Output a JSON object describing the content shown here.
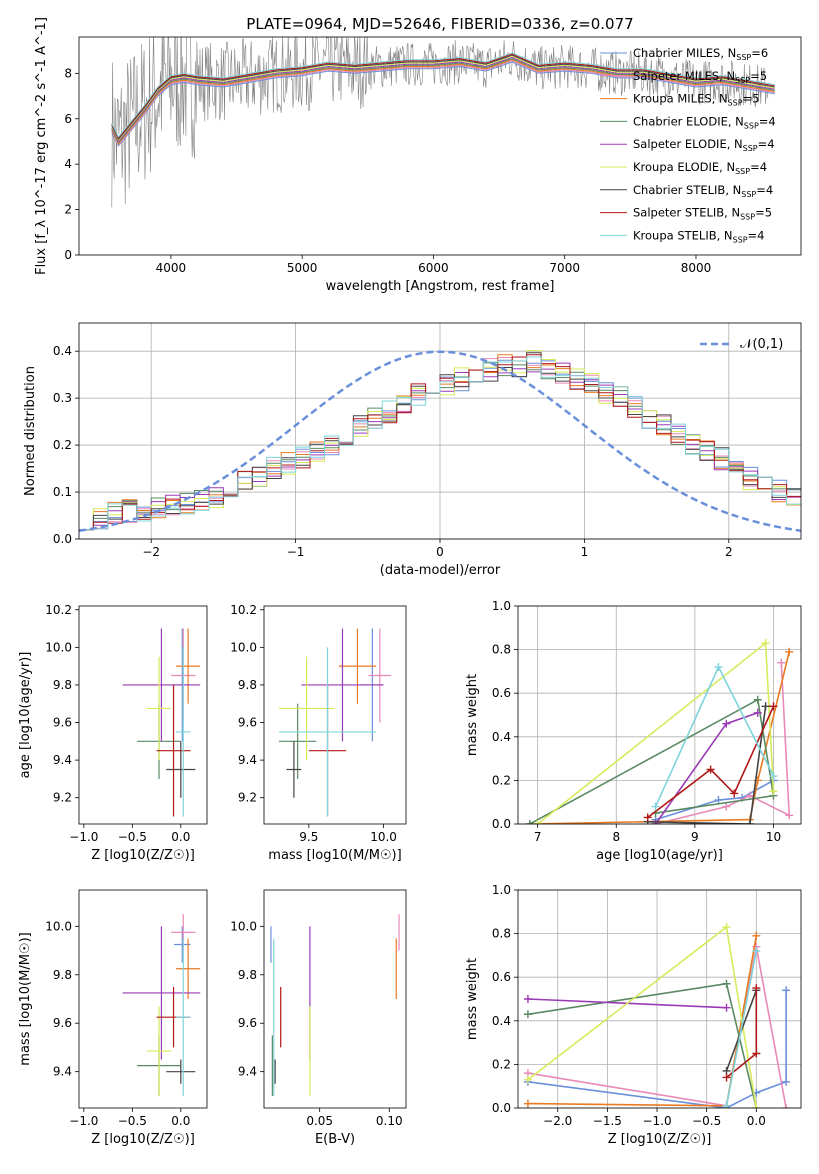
{
  "figure": {
    "title": "PLATE=0964, MJD=52646, FIBERID=0336, z=0.077"
  },
  "colors": {
    "Chabrier MILES": "#6a8fdb",
    "Salpeter MILES": "#e88ab8",
    "Kroupa MILES": "#e87a22",
    "Chabrier ELODIE": "#5a8a62",
    "Salpeter ELODIE": "#9a3bb5",
    "Kroupa ELODIE": "#d7ea5a",
    "Chabrier STELIB": "#444444",
    "Salpeter STELIB": "#b01818",
    "Kroupa STELIB": "#7fd4dc",
    "data": "#808080",
    "normal": "#6a8fdb"
  },
  "chart_data": [
    {
      "id": "spectrum",
      "type": "line",
      "title": "PLATE=0964, MJD=52646, FIBERID=0336, z=0.077",
      "xlabel": "wavelength [Angstrom, rest frame]",
      "ylabel": "Flux [f_λ 10^-17 erg cm^-2 s^-1 A^-1]",
      "xlim": [
        3300,
        8800
      ],
      "ylim": [
        0,
        9.6
      ],
      "xticks": [
        4000,
        5000,
        6000,
        7000,
        8000
      ],
      "yticks": [
        0,
        2,
        4,
        6,
        8
      ],
      "legend_position": "right",
      "legend": [
        "Chabrier MILES, N_SSP=6",
        "Salpeter MILES, N_SSP=5",
        "Kroupa MILES, N_SSP=5",
        "Chabrier ELODIE, N_SSP=4",
        "Salpeter ELODIE, N_SSP=4",
        "Kroupa ELODIE, N_SSP=4",
        "Chabrier STELIB, N_SSP=4",
        "Salpeter STELIB, N_SSP=5",
        "Kroupa STELIB, N_SSP=4"
      ],
      "model_x": [
        3550,
        3600,
        3700,
        3800,
        3900,
        4000,
        4100,
        4200,
        4400,
        4600,
        4800,
        5000,
        5200,
        5400,
        5600,
        5800,
        6000,
        6200,
        6400,
        6600,
        6800,
        7000,
        7200,
        7400,
        7600,
        7800,
        8000,
        8200,
        8400,
        8600
      ],
      "model_y": [
        5.6,
        5.0,
        5.7,
        6.4,
        7.2,
        7.7,
        7.8,
        7.7,
        7.6,
        7.8,
        8.0,
        8.1,
        8.3,
        8.2,
        8.3,
        8.4,
        8.4,
        8.5,
        8.3,
        8.7,
        8.2,
        8.3,
        8.2,
        8.0,
        8.0,
        7.8,
        7.6,
        7.7,
        7.5,
        7.3
      ]
    },
    {
      "id": "residuals",
      "type": "histogram",
      "xlabel": "(data-model)/error",
      "ylabel": "Normed distribution",
      "xlim": [
        -2.5,
        2.5
      ],
      "ylim": [
        0,
        0.46
      ],
      "xticks": [
        -2,
        -1,
        0,
        1,
        2
      ],
      "yticks": [
        0.0,
        0.1,
        0.2,
        0.3,
        0.4
      ],
      "legend": [
        "𝒩(0,1)"
      ],
      "legend_position": "top-right",
      "bin_edges_start": -2.5,
      "bin_width": 0.1,
      "heights": [
        0.045,
        0.04,
        0.055,
        0.06,
        0.05,
        0.065,
        0.07,
        0.075,
        0.08,
        0.09,
        0.11,
        0.12,
        0.13,
        0.15,
        0.16,
        0.175,
        0.19,
        0.2,
        0.22,
        0.24,
        0.26,
        0.27,
        0.29,
        0.31,
        0.32,
        0.33,
        0.34,
        0.35,
        0.36,
        0.37,
        0.37,
        0.38,
        0.36,
        0.35,
        0.34,
        0.33,
        0.31,
        0.3,
        0.28,
        0.26,
        0.24,
        0.22,
        0.2,
        0.19,
        0.17,
        0.15,
        0.13,
        0.12,
        0.1,
        0.09
      ]
    },
    {
      "id": "age-vs-Z",
      "type": "scatter",
      "xlabel": "Z [log10(Z/Z☉)]",
      "ylabel": "age [log10(age/yr)]",
      "xlim": [
        -1.05,
        0.27
      ],
      "ylim": [
        9.06,
        10.22
      ],
      "xticks": [
        -1.0,
        -0.5,
        0.0
      ],
      "yticks": [
        9.2,
        9.4,
        9.6,
        9.8,
        10.0,
        10.2
      ]
    },
    {
      "id": "age-vs-mass",
      "type": "scatter",
      "xlabel": "mass [log10(M/M☉)]",
      "ylabel": "",
      "xlim": [
        9.2,
        10.15
      ],
      "ylim": [
        9.06,
        10.22
      ],
      "xticks": [
        9.5,
        10.0
      ],
      "yticks": [
        9.2,
        9.4,
        9.6,
        9.8,
        10.0,
        10.2
      ]
    },
    {
      "id": "weight-vs-age",
      "type": "line",
      "xlabel": "age [log10(age/yr)]",
      "ylabel": "mass weight",
      "xlim": [
        6.75,
        10.35
      ],
      "ylim": [
        0,
        1
      ],
      "xticks": [
        7,
        8,
        9,
        10
      ],
      "yticks": [
        0.0,
        0.2,
        0.4,
        0.6,
        0.8,
        1.0
      ]
    },
    {
      "id": "mass-vs-Z",
      "type": "scatter",
      "xlabel": "Z [log10(Z/Z☉)]",
      "ylabel": "mass [log10(M/M☉)]",
      "xlim": [
        -1.05,
        0.27
      ],
      "ylim": [
        9.25,
        10.15
      ],
      "xticks": [
        -1.0,
        -0.5,
        0.0
      ],
      "yticks": [
        9.4,
        9.6,
        9.8,
        10.0
      ]
    },
    {
      "id": "mass-vs-ebv",
      "type": "scatter",
      "xlabel": "E(B-V)",
      "ylabel": "",
      "xlim": [
        0.01,
        0.112
      ],
      "ylim": [
        9.25,
        10.15
      ],
      "xticks": [
        0.05,
        0.1
      ],
      "yticks": [
        9.4,
        9.6,
        9.8,
        10.0
      ]
    },
    {
      "id": "weight-vs-Z",
      "type": "line",
      "xlabel": "Z [log10(Z/Z☉)]",
      "ylabel": "mass weight",
      "xlim": [
        -2.4,
        0.45
      ],
      "ylim": [
        0,
        1
      ],
      "xticks": [
        -2.0,
        -1.5,
        -1.0,
        -0.5,
        0.0
      ],
      "yticks": [
        0.0,
        0.2,
        0.4,
        0.6,
        0.8,
        1.0
      ]
    }
  ],
  "fits": [
    {
      "name": "Chabrier MILES",
      "Z": [
        -0.07,
        0.1
      ],
      "age": [
        9.5,
        10.1
      ],
      "mass": [
        9.85,
        10.0
      ],
      "ebv": 0.015,
      "ageW": [
        [
          8.5,
          0.02
        ],
        [
          9.3,
          0.11
        ],
        [
          9.6,
          0.12
        ],
        [
          10.0,
          0.2
        ]
      ],
      "zW": [
        [
          -2.3,
          0.12
        ],
        [
          -0.3,
          0.0
        ],
        [
          0.0,
          0.07
        ],
        [
          0.3,
          0.12
        ],
        [
          0.3,
          0.54
        ]
      ]
    },
    {
      "name": "Salpeter MILES",
      "Z": [
        -0.1,
        0.15
      ],
      "age": [
        9.6,
        10.1
      ],
      "mass": [
        9.9,
        10.05
      ],
      "ebv": 0.107,
      "ageW": [
        [
          8.5,
          0.0
        ],
        [
          9.4,
          0.08
        ],
        [
          9.7,
          0.13
        ],
        [
          10.2,
          0.04
        ],
        [
          10.1,
          0.74
        ]
      ],
      "zW": [
        [
          -2.3,
          0.16
        ],
        [
          -0.3,
          0.01
        ],
        [
          0.0,
          0.74
        ],
        [
          0.3,
          0.0
        ]
      ]
    },
    {
      "name": "Kroupa MILES",
      "Z": [
        -0.05,
        0.2
      ],
      "age": [
        9.7,
        10.1
      ],
      "mass": [
        9.7,
        9.95
      ],
      "ebv": 0.105,
      "ageW": [
        [
          6.9,
          0.0
        ],
        [
          9.7,
          0.02
        ],
        [
          9.8,
          0.2
        ],
        [
          10.2,
          0.79
        ]
      ],
      "zW": [
        [
          -2.3,
          0.02
        ],
        [
          -0.3,
          0.01
        ],
        [
          0.0,
          0.79
        ]
      ]
    },
    {
      "name": "Chabrier ELODIE",
      "Z": [
        -0.45,
        -0.0
      ],
      "age": [
        9.3,
        9.7
      ],
      "mass": [
        9.3,
        9.55
      ],
      "ebv": 0.016,
      "ageW": [
        [
          6.9,
          0.0
        ],
        [
          9.8,
          0.57
        ],
        [
          10.0,
          0.13
        ],
        [
          8.5,
          0.05
        ]
      ],
      "zW": [
        [
          -2.3,
          0.43
        ],
        [
          -0.3,
          0.57
        ],
        [
          0.0,
          0.0
        ]
      ]
    },
    {
      "name": "Salpeter ELODIE",
      "Z": [
        -0.6,
        0.2
      ],
      "age": [
        9.5,
        10.1
      ],
      "mass": [
        9.45,
        10.0
      ],
      "ebv": 0.043,
      "ageW": [
        [
          8.5,
          0.0
        ],
        [
          9.4,
          0.46
        ],
        [
          9.8,
          0.51
        ]
      ],
      "zW": [
        [
          -2.3,
          0.5
        ],
        [
          -0.3,
          0.46
        ]
      ]
    },
    {
      "name": "Kroupa ELODIE",
      "Z": [
        -0.35,
        -0.1
      ],
      "age": [
        9.4,
        9.95
      ],
      "mass": [
        9.3,
        9.67
      ],
      "ebv": 0.043,
      "ageW": [
        [
          7.0,
          0.0
        ],
        [
          9.9,
          0.83
        ],
        [
          10.0,
          0.15
        ]
      ],
      "zW": [
        [
          -2.3,
          0.13
        ],
        [
          -0.3,
          0.83
        ],
        [
          0.0,
          0.0
        ]
      ]
    },
    {
      "name": "Chabrier STELIB",
      "Z": [
        -0.15,
        0.15
      ],
      "age": [
        9.2,
        9.5
      ],
      "mass": [
        9.35,
        9.45
      ],
      "ebv": 0.018,
      "ageW": [
        [
          8.4,
          0.01
        ],
        [
          9.7,
          0.0
        ],
        [
          9.9,
          0.54
        ]
      ],
      "zW": [
        [
          -0.3,
          0.17
        ],
        [
          0.0,
          0.54
        ]
      ]
    },
    {
      "name": "Salpeter STELIB",
      "Z": [
        -0.25,
        0.1
      ],
      "age": [
        9.1,
        9.8
      ],
      "mass": [
        9.5,
        9.75
      ],
      "ebv": 0.022,
      "ageW": [
        [
          8.4,
          0.03
        ],
        [
          9.2,
          0.25
        ],
        [
          9.5,
          0.14
        ],
        [
          10.0,
          0.54
        ]
      ],
      "zW": [
        [
          -0.3,
          0.14
        ],
        [
          0.0,
          0.25
        ],
        [
          0.0,
          0.55
        ]
      ]
    },
    {
      "name": "Kroupa STELIB",
      "Z": [
        -0.05,
        0.1
      ],
      "age": [
        9.1,
        10.0
      ],
      "mass": [
        9.3,
        9.95
      ],
      "ebv": 0.017,
      "ageW": [
        [
          8.5,
          0.08
        ],
        [
          9.3,
          0.72
        ],
        [
          10.0,
          0.22
        ]
      ],
      "zW": [
        [
          -0.3,
          0.01
        ],
        [
          0.0,
          0.72
        ]
      ]
    }
  ]
}
